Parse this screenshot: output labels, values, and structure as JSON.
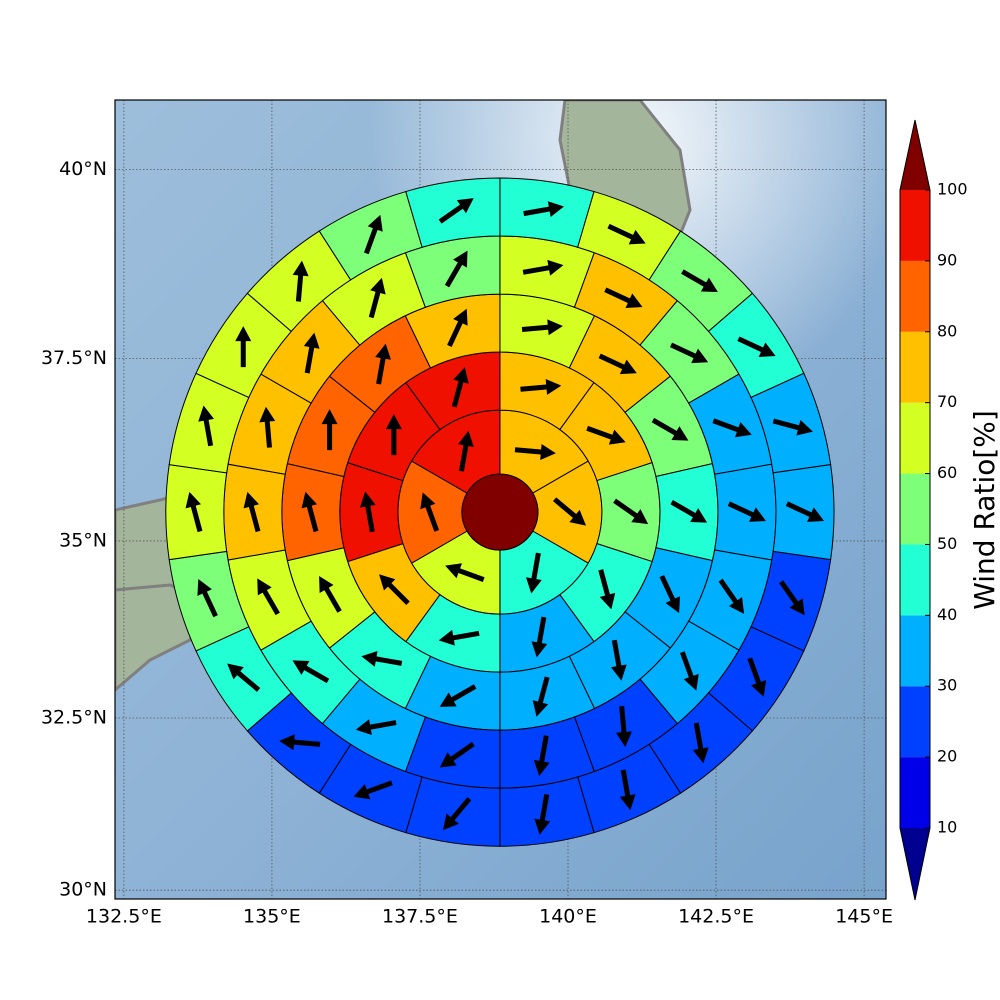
{
  "chart_data": {
    "type": "polar_map",
    "xlim": [
      132.35,
      145.37
    ],
    "ylim": [
      29.87,
      40.9
    ],
    "xticks": [
      {
        "value": 132.5,
        "label": "132.5°E"
      },
      {
        "value": 135,
        "label": "135°E"
      },
      {
        "value": 137.5,
        "label": "137.5°E"
      },
      {
        "value": 140,
        "label": "140°E"
      },
      {
        "value": 142.5,
        "label": "142.5°E"
      },
      {
        "value": 145,
        "label": "145°E"
      }
    ],
    "yticks": [
      {
        "value": 30,
        "label": "30°N"
      },
      {
        "value": 32.5,
        "label": "32.5°N"
      },
      {
        "value": 35,
        "label": "35°N"
      },
      {
        "value": 37.5,
        "label": "37.5°N"
      },
      {
        "value": 40,
        "label": "40°N"
      }
    ],
    "grid": true,
    "center": {
      "lon": 138.85,
      "lat": 35.4,
      "value": 105
    },
    "ring_edges": [
      0.642,
      1.723,
      2.703,
      3.682,
      4.662,
      5.642
    ],
    "rings": [
      {
        "values": [
          75,
          75,
          45,
          65,
          85,
          95
        ],
        "directions": [
          95,
          130,
          190,
          290,
          340,
          10
        ]
      },
      {
        "values": [
          75,
          75,
          55,
          45,
          35,
          45,
          75,
          95,
          95,
          95
        ],
        "directions": [
          85,
          110,
          125,
          165,
          190,
          260,
          315,
          350,
          0,
          15
        ]
      },
      {
        "values": [
          65,
          75,
          55,
          45,
          35,
          35,
          35,
          35,
          45,
          65,
          85,
          85,
          85,
          75
        ],
        "directions": [
          85,
          115,
          120,
          120,
          155,
          170,
          195,
          240,
          280,
          330,
          345,
          0,
          10,
          25
        ]
      },
      {
        "values": [
          65,
          75,
          55,
          35,
          35,
          35,
          35,
          25,
          25,
          25,
          35,
          45,
          65,
          75,
          75,
          75,
          65,
          55
        ],
        "directions": [
          80,
          115,
          115,
          110,
          115,
          145,
          160,
          175,
          190,
          235,
          260,
          300,
          330,
          345,
          355,
          10,
          15,
          30
        ]
      },
      {
        "values": [
          45,
          65,
          55,
          45,
          35,
          35,
          25,
          25,
          25,
          25,
          25,
          25,
          25,
          25,
          45,
          55,
          65,
          65,
          65,
          65,
          55,
          45
        ],
        "directions": [
          80,
          115,
          120,
          115,
          105,
          115,
          145,
          160,
          170,
          170,
          190,
          220,
          250,
          275,
          310,
          335,
          345,
          350,
          0,
          5,
          20,
          55
        ]
      }
    ],
    "colorbar": {
      "label": "Wind Ratio[%]",
      "ticks": [
        10,
        20,
        30,
        40,
        50,
        60,
        70,
        80,
        90,
        100
      ],
      "colors": [
        "#0000e8",
        "#0040ff",
        "#00b0ff",
        "#22ffd4",
        "#7dff7a",
        "#d4ff22",
        "#ffc000",
        "#ff6400",
        "#f01000"
      ],
      "under": "#000090",
      "over": "#800000"
    }
  }
}
